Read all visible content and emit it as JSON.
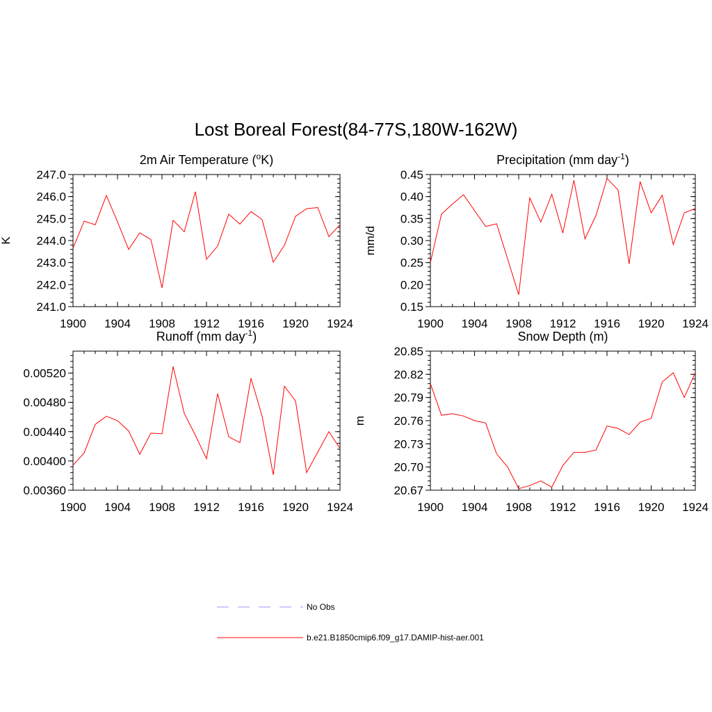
{
  "title": "Lost Boreal Forest(84-77S,180W-162W)",
  "legend": [
    {
      "label": "No Obs",
      "color": "#9999ff",
      "dash": "dashed"
    },
    {
      "label": "b.e21.B1850cmip6.f09_g17.DAMIP-hist-aer.001",
      "color": "#ff0000",
      "dash": "solid"
    }
  ],
  "chart_data": [
    {
      "type": "line",
      "title_main": "2m Air Temperature (",
      "title_sup": "o",
      "title_tail": "K)",
      "ylabel": "K",
      "xlim": [
        1900,
        1924
      ],
      "ylim": [
        241.0,
        247.0
      ],
      "x_ticks": [
        "1900",
        "1904",
        "1908",
        "1912",
        "1916",
        "1920",
        "1924"
      ],
      "y_ticks": [
        "241.0",
        "242.0",
        "243.0",
        "244.0",
        "245.0",
        "246.0",
        "247.0"
      ],
      "series": [
        {
          "color": "#ff0000",
          "x": [
            1900,
            1901,
            1902,
            1903,
            1904,
            1905,
            1906,
            1907,
            1908,
            1909,
            1910,
            1911,
            1912,
            1913,
            1914,
            1915,
            1916,
            1917,
            1918,
            1919,
            1920,
            1921,
            1922,
            1923,
            1924
          ],
          "values": [
            243.65,
            244.88,
            244.72,
            246.05,
            244.85,
            243.6,
            244.35,
            244.05,
            241.85,
            244.92,
            244.4,
            246.22,
            243.15,
            243.75,
            245.2,
            244.75,
            245.32,
            244.95,
            243.02,
            243.78,
            245.1,
            245.45,
            245.5,
            244.18,
            244.72
          ]
        }
      ]
    },
    {
      "type": "line",
      "title_main": "Precipitation (mm day",
      "title_sup": "-1",
      "title_tail": ")",
      "ylabel": "mm/d",
      "xlim": [
        1900,
        1924
      ],
      "ylim": [
        0.15,
        0.45
      ],
      "x_ticks": [
        "1900",
        "1904",
        "1908",
        "1912",
        "1916",
        "1920",
        "1924"
      ],
      "y_ticks": [
        "0.15",
        "0.20",
        "0.25",
        "0.30",
        "0.35",
        "0.40",
        "0.45"
      ],
      "series": [
        {
          "color": "#ff0000",
          "x": [
            1900,
            1901,
            1902,
            1903,
            1904,
            1905,
            1906,
            1907,
            1908,
            1909,
            1910,
            1911,
            1912,
            1913,
            1914,
            1915,
            1916,
            1917,
            1918,
            1919,
            1920,
            1921,
            1922,
            1923,
            1924
          ],
          "values": [
            0.25,
            0.36,
            0.383,
            0.404,
            0.368,
            0.332,
            0.338,
            0.258,
            0.177,
            0.397,
            0.342,
            0.405,
            0.317,
            0.437,
            0.304,
            0.357,
            0.441,
            0.415,
            0.247,
            0.434,
            0.363,
            0.403,
            0.291,
            0.363,
            0.373
          ]
        }
      ]
    },
    {
      "type": "line",
      "title_main": "Runoff (mm day",
      "title_sup": "-1",
      "title_tail": ")",
      "ylabel": "",
      "xlim": [
        1900,
        1924
      ],
      "ylim": [
        0.0036,
        0.0055
      ],
      "x_ticks": [
        "1900",
        "1904",
        "1908",
        "1912",
        "1916",
        "1920",
        "1924"
      ],
      "y_ticks": [
        "0.00360",
        "0.00400",
        "0.00440",
        "0.00480",
        "0.00520"
      ],
      "series": [
        {
          "color": "#ff0000",
          "x": [
            1900,
            1901,
            1902,
            1903,
            1904,
            1905,
            1906,
            1907,
            1908,
            1909,
            1910,
            1911,
            1912,
            1913,
            1914,
            1915,
            1916,
            1917,
            1918,
            1919,
            1920,
            1921,
            1922,
            1923,
            1924
          ],
          "values": [
            0.00394,
            0.00411,
            0.0045,
            0.00461,
            0.00455,
            0.00441,
            0.00409,
            0.00438,
            0.00437,
            0.00529,
            0.00465,
            0.00435,
            0.00403,
            0.00492,
            0.00433,
            0.00425,
            0.00513,
            0.00461,
            0.00381,
            0.00502,
            0.00482,
            0.00384,
            0.00412,
            0.0044,
            0.00417
          ]
        }
      ]
    },
    {
      "type": "line",
      "title_main": "Snow Depth (m)",
      "title_sup": "",
      "title_tail": "",
      "ylabel": "m",
      "xlim": [
        1900,
        1924
      ],
      "ylim": [
        20.67,
        20.85
      ],
      "x_ticks": [
        "1900",
        "1904",
        "1908",
        "1912",
        "1916",
        "1920",
        "1924"
      ],
      "y_ticks": [
        "20.67",
        "20.70",
        "20.73",
        "20.76",
        "20.79",
        "20.82",
        "20.85"
      ],
      "series": [
        {
          "color": "#ff0000",
          "x": [
            1900,
            1901,
            1902,
            1903,
            1904,
            1905,
            1906,
            1907,
            1908,
            1909,
            1910,
            1911,
            1912,
            1913,
            1914,
            1915,
            1916,
            1917,
            1918,
            1919,
            1920,
            1921,
            1922,
            1923,
            1924
          ],
          "values": [
            20.808,
            20.767,
            20.769,
            20.766,
            20.76,
            20.757,
            20.717,
            20.7,
            20.672,
            20.676,
            20.682,
            20.674,
            20.702,
            20.719,
            20.719,
            20.722,
            20.753,
            20.75,
            20.742,
            20.758,
            20.763,
            20.81,
            20.822,
            20.79,
            20.822
          ]
        }
      ]
    }
  ]
}
